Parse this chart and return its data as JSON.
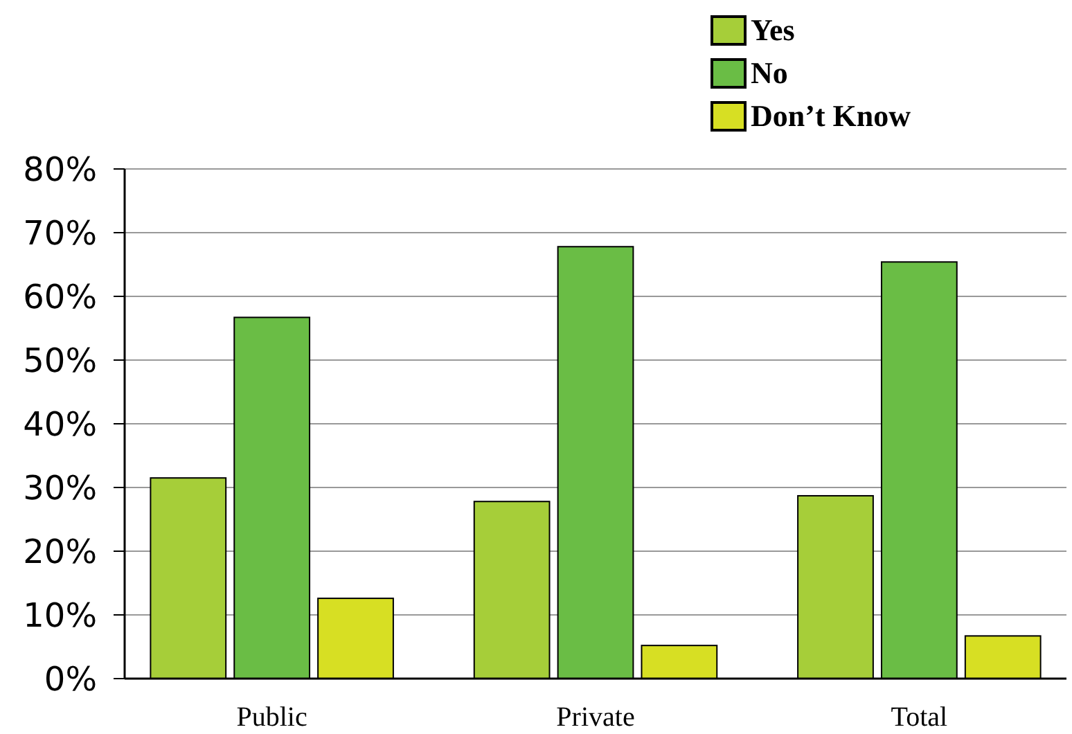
{
  "chart_data": {
    "type": "bar",
    "categories": [
      "Public",
      "Private",
      "Total"
    ],
    "series": [
      {
        "name": "Yes",
        "color": "#a6ce39",
        "values": [
          31.5,
          27.8,
          28.7
        ]
      },
      {
        "name": "No",
        "color": "#6abd45",
        "values": [
          56.7,
          67.8,
          65.4
        ]
      },
      {
        "name": "Don’t Know",
        "color": "#d7df23",
        "values": [
          12.6,
          5.2,
          6.7
        ]
      }
    ],
    "ylim": [
      0,
      80
    ],
    "yticks": [
      {
        "value": 0,
        "label": "0%"
      },
      {
        "value": 10,
        "label": "10%"
      },
      {
        "value": 20,
        "label": "20%"
      },
      {
        "value": 30,
        "label": "30%"
      },
      {
        "value": 40,
        "label": "40%"
      },
      {
        "value": 50,
        "label": "50%"
      },
      {
        "value": 60,
        "label": "60%"
      },
      {
        "value": 70,
        "label": "70%"
      },
      {
        "value": 80,
        "label": "80%"
      }
    ],
    "grid": "y",
    "legend": "top right"
  }
}
